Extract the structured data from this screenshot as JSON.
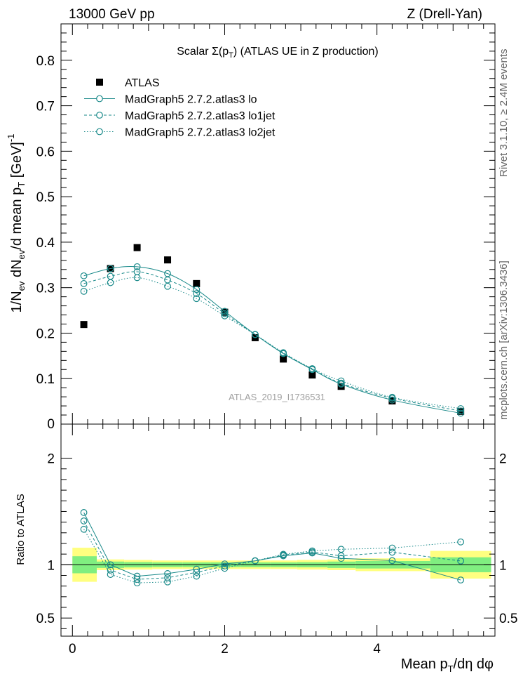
{
  "header": {
    "left": "13000 GeV pp",
    "right": "Z (Drell-Yan)"
  },
  "side": {
    "rivet": "Rivet 3.1.10, ≥ 2.4M events",
    "mcplots": "mcplots.cern.ch [arXiv:1306.3436]"
  },
  "watermark": "ATLAS_2019_I1736531",
  "colors": {
    "mc": "#1a8a8a",
    "data": "#000000",
    "band_inner": "#80ee80",
    "band_outer": "#ffff80"
  },
  "chart_data": [
    {
      "type": "scatter",
      "title": "Scalar Σ(p_T) (ATLAS UE in Z production)",
      "ylabel": "1/N_ev dN_ev/d mean p_T [GeV]^-1",
      "xlim": [
        -0.15,
        5.55
      ],
      "ylim": [
        0,
        0.88
      ],
      "yticks": [
        0.1,
        0.2,
        0.3,
        0.4,
        0.5,
        0.6,
        0.7,
        0.8
      ],
      "ytick_labels": [
        "0.1",
        "0.2",
        "0.3",
        "0.4",
        "0.5",
        "0.6",
        "0.7",
        "0.8"
      ],
      "y_bottom_label": "0",
      "legend": {
        "position": "top-left",
        "entries": [
          "ATLAS",
          "MadGraph5 2.7.2.atlas3 lo",
          "MadGraph5 2.7.2.atlas3 lo1jet",
          "MadGraph5 2.7.2.atlas3 lo2jet"
        ]
      },
      "x": [
        0.15,
        0.5,
        0.85,
        1.25,
        1.63,
        2.0,
        2.4,
        2.77,
        3.15,
        3.53,
        4.2,
        5.1
      ],
      "series": [
        {
          "name": "ATLAS",
          "style": "square",
          "values": [
            0.219,
            0.342,
            0.388,
            0.361,
            0.309,
            0.246,
            0.19,
            0.143,
            0.108,
            0.083,
            0.051,
            0.028
          ]
        },
        {
          "name": "MadGraph5 2.7.2.atlas3 lo",
          "style": "solid",
          "values": [
            0.326,
            0.342,
            0.346,
            0.331,
            0.296,
            0.248,
            0.197,
            0.155,
            0.12,
            0.088,
            0.053,
            0.024
          ]
        },
        {
          "name": "MadGraph5 2.7.2.atlas3 lo1jet",
          "style": "dashed",
          "values": [
            0.309,
            0.325,
            0.335,
            0.317,
            0.287,
            0.243,
            0.197,
            0.156,
            0.121,
            0.09,
            0.057,
            0.029
          ]
        },
        {
          "name": "MadGraph5 2.7.2.atlas3 lo2jet",
          "style": "dotted",
          "values": [
            0.292,
            0.311,
            0.322,
            0.303,
            0.276,
            0.238,
            0.197,
            0.157,
            0.122,
            0.095,
            0.059,
            0.034
          ]
        }
      ]
    },
    {
      "type": "scatter",
      "ylabel": "Ratio to ATLAS",
      "xlabel": "Mean p_T/dη dφ",
      "xlim": [
        -0.15,
        5.55
      ],
      "ylim": [
        0.33,
        2.32
      ],
      "yticks": [
        0.5,
        1,
        2
      ],
      "ytick_labels": [
        "0.5",
        "1",
        "2"
      ],
      "xticks": [
        0,
        2,
        4
      ],
      "xtick_labels": [
        "0",
        "2",
        "4"
      ],
      "band": {
        "edges": [
          0,
          0.32,
          0.68,
          1.05,
          1.45,
          1.82,
          2.2,
          2.6,
          2.95,
          3.35,
          3.72,
          4.7,
          5.5
        ],
        "inner": [
          0.08,
          0.03,
          0.025,
          0.022,
          0.022,
          0.022,
          0.022,
          0.022,
          0.024,
          0.03,
          0.035,
          0.07
        ],
        "outer": [
          0.16,
          0.05,
          0.045,
          0.04,
          0.04,
          0.04,
          0.04,
          0.04,
          0.045,
          0.05,
          0.06,
          0.13
        ]
      },
      "x": [
        0.15,
        0.5,
        0.85,
        1.25,
        1.63,
        2.0,
        2.4,
        2.77,
        3.15,
        3.53,
        4.2,
        5.1
      ],
      "series": [
        {
          "name": "MadGraph5 2.7.2.atlas3 lo",
          "style": "solid",
          "values": [
            1.49,
            1.0,
            0.893,
            0.917,
            0.958,
            1.008,
            1.037,
            1.084,
            1.111,
            1.06,
            1.039,
            0.857
          ]
        },
        {
          "name": "MadGraph5 2.7.2.atlas3 lo1jet",
          "style": "dashed",
          "values": [
            1.411,
            0.95,
            0.863,
            0.878,
            0.929,
            0.988,
            1.037,
            1.091,
            1.12,
            1.084,
            1.118,
            1.036
          ]
        },
        {
          "name": "MadGraph5 2.7.2.atlas3 lo2jet",
          "style": "dotted",
          "values": [
            1.333,
            0.909,
            0.83,
            0.839,
            0.893,
            0.967,
            1.037,
            1.098,
            1.13,
            1.145,
            1.157,
            1.214
          ]
        }
      ]
    }
  ]
}
